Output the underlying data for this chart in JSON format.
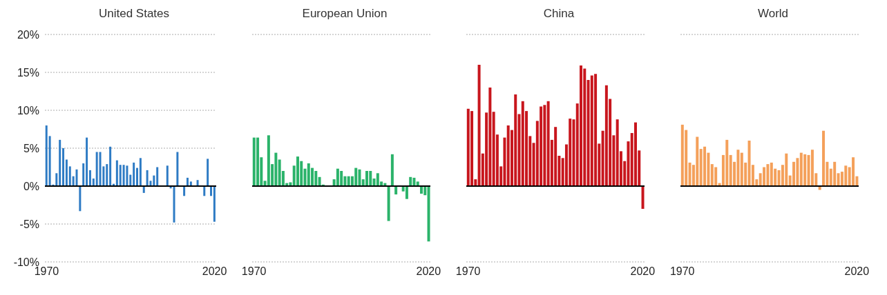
{
  "chart_data": [
    {
      "type": "bar",
      "title": "United States",
      "categories": [
        "1970",
        null,
        null,
        null,
        null,
        null,
        null,
        null,
        null,
        null,
        null,
        null,
        null,
        null,
        null,
        null,
        null,
        null,
        null,
        null,
        null,
        null,
        null,
        null,
        null,
        null,
        null,
        null,
        null,
        null,
        null,
        null,
        null,
        null,
        null,
        null,
        null,
        null,
        null,
        null,
        null,
        null,
        null,
        null,
        null,
        null,
        null,
        null,
        null,
        null,
        "2020"
      ],
      "values": [
        8.0,
        6.6,
        0.2,
        1.7,
        6.1,
        5.0,
        3.5,
        2.6,
        1.3,
        2.2,
        -3.3,
        3.0,
        6.4,
        2.1,
        1.0,
        4.5,
        4.5,
        2.6,
        2.9,
        5.2,
        0.3,
        3.4,
        2.8,
        2.8,
        2.7,
        1.5,
        3.1,
        2.4,
        3.7,
        -0.9,
        2.1,
        0.7,
        1.4,
        2.5,
        0,
        0,
        2.7,
        -0.3,
        -4.8,
        4.5,
        0,
        -1.3,
        1.1,
        0.6,
        0,
        0.8,
        0,
        -1.3,
        3.6,
        -1.3,
        -4.7
      ],
      "color": "#2e7bc4",
      "ylim": [
        -10,
        20
      ],
      "yticks": [
        {
          "value": -10,
          "label": "-10%"
        },
        {
          "value": -5,
          "label": "-5%"
        },
        {
          "value": 0,
          "label": "0%"
        },
        {
          "value": 5,
          "label": "5%"
        },
        {
          "value": 10,
          "label": "10%"
        },
        {
          "value": 15,
          "label": "15%"
        },
        {
          "value": 20,
          "label": "20%"
        }
      ],
      "grid": "y",
      "ref_lines": [
        {
          "axis": "y",
          "value": 0,
          "color": "#000000"
        }
      ]
    },
    {
      "type": "bar",
      "title": "European Union",
      "categories": [
        "1970",
        null,
        null,
        null,
        null,
        null,
        null,
        null,
        null,
        null,
        null,
        null,
        null,
        null,
        null,
        null,
        null,
        null,
        null,
        null,
        null,
        null,
        null,
        null,
        null,
        null,
        null,
        null,
        null,
        null,
        null,
        null,
        null,
        null,
        null,
        null,
        null,
        null,
        null,
        null,
        null,
        null,
        null,
        null,
        null,
        null,
        null,
        null,
        "2020"
      ],
      "values": [
        6.4,
        6.4,
        3.8,
        0.7,
        6.7,
        2.9,
        4.4,
        3.5,
        2.0,
        0.4,
        0.5,
        2.7,
        3.9,
        3.3,
        2.3,
        3.0,
        2.4,
        2.0,
        1.2,
        0.2,
        0,
        0,
        0.9,
        2.3,
        2.0,
        1.3,
        1.3,
        1.3,
        2.4,
        2.2,
        0.9,
        2.0,
        2.0,
        1.0,
        1.7,
        0.6,
        0.4,
        -4.6,
        4.2,
        -1.1,
        0,
        -0.7,
        -1.7,
        1.2,
        1.1,
        0.6,
        -1.0,
        -1.2,
        -7.3
      ],
      "color": "#2bb36a",
      "ylim": [
        -10,
        20
      ],
      "yticks": [
        {
          "value": -10,
          "label": null
        },
        {
          "value": -5,
          "label": null
        },
        {
          "value": 0,
          "label": null
        },
        {
          "value": 5,
          "label": null
        },
        {
          "value": 10,
          "label": null
        },
        {
          "value": 15,
          "label": null
        },
        {
          "value": 20,
          "label": null
        }
      ],
      "grid": "y",
      "tick_labels": "x",
      "ref_lines": [
        {
          "axis": "y",
          "value": 0,
          "color": "#000000"
        }
      ]
    },
    {
      "type": "bar",
      "title": "China",
      "categories": [
        "1970",
        null,
        null,
        null,
        null,
        null,
        null,
        null,
        null,
        null,
        null,
        null,
        null,
        null,
        null,
        null,
        null,
        null,
        null,
        null,
        null,
        null,
        null,
        null,
        null,
        null,
        null,
        null,
        null,
        null,
        null,
        null,
        null,
        null,
        null,
        null,
        null,
        null,
        null,
        null,
        null,
        null,
        null,
        null,
        null,
        null,
        null,
        null,
        "2020"
      ],
      "values": [
        10.2,
        9.9,
        0.9,
        16.0,
        4.3,
        9.7,
        13.0,
        9.8,
        6.8,
        2.6,
        6.4,
        8.0,
        7.4,
        12.1,
        9.5,
        11.2,
        9.9,
        6.6,
        5.7,
        8.6,
        10.5,
        10.7,
        11.2,
        6.1,
        7.8,
        4.0,
        3.7,
        5.5,
        8.9,
        8.8,
        10.9,
        15.9,
        15.5,
        14.0,
        14.6,
        14.8,
        5.6,
        7.3,
        13.3,
        11.5,
        6.7,
        8.8,
        4.6,
        3.3,
        5.9,
        7.0,
        8.4,
        4.7,
        -3.0
      ],
      "color": "#c8161d",
      "ylim": [
        -10,
        20
      ],
      "yticks": [
        {
          "value": -10,
          "label": null
        },
        {
          "value": -5,
          "label": null
        },
        {
          "value": 0,
          "label": null
        },
        {
          "value": 5,
          "label": null
        },
        {
          "value": 10,
          "label": null
        },
        {
          "value": 15,
          "label": null
        },
        {
          "value": 20,
          "label": null
        }
      ],
      "grid": "y",
      "tick_labels": "x",
      "ref_lines": [
        {
          "axis": "y",
          "value": 0,
          "color": "#000000"
        }
      ]
    },
    {
      "type": "bar",
      "title": "World",
      "categories": [
        "1970",
        null,
        null,
        null,
        null,
        null,
        null,
        null,
        null,
        null,
        null,
        null,
        null,
        null,
        null,
        null,
        null,
        null,
        null,
        null,
        null,
        null,
        null,
        null,
        null,
        null,
        null,
        null,
        null,
        null,
        null,
        null,
        null,
        null,
        null,
        null,
        null,
        null,
        null,
        null,
        null,
        null,
        null,
        null,
        null,
        null,
        null,
        "2020"
      ],
      "values": [
        8.1,
        7.4,
        3.1,
        2.8,
        6.5,
        4.9,
        5.2,
        4.4,
        2.9,
        2.5,
        0.4,
        4.1,
        6.1,
        4.1,
        3.2,
        4.8,
        4.4,
        3.1,
        6.0,
        2.8,
        0.9,
        1.7,
        2.5,
        2.9,
        3.1,
        2.3,
        2.1,
        2.8,
        4.3,
        1.4,
        3.2,
        3.7,
        4.4,
        4.2,
        4.1,
        4.8,
        1.7,
        -0.5,
        7.3,
        3.2,
        2.3,
        3.2,
        1.7,
        1.9,
        2.7,
        2.5,
        3.8,
        1.3
      ],
      "color": "#f4a05a",
      "ylim": [
        -10,
        20
      ],
      "yticks": [
        {
          "value": -10,
          "label": null
        },
        {
          "value": -5,
          "label": null
        },
        {
          "value": 0,
          "label": null
        },
        {
          "value": 5,
          "label": null
        },
        {
          "value": 10,
          "label": null
        },
        {
          "value": 15,
          "label": null
        },
        {
          "value": 20,
          "label": null
        }
      ],
      "grid": "y",
      "tick_labels": "x",
      "ref_lines": [
        {
          "axis": "y",
          "value": 0,
          "color": "#000000"
        }
      ]
    }
  ]
}
